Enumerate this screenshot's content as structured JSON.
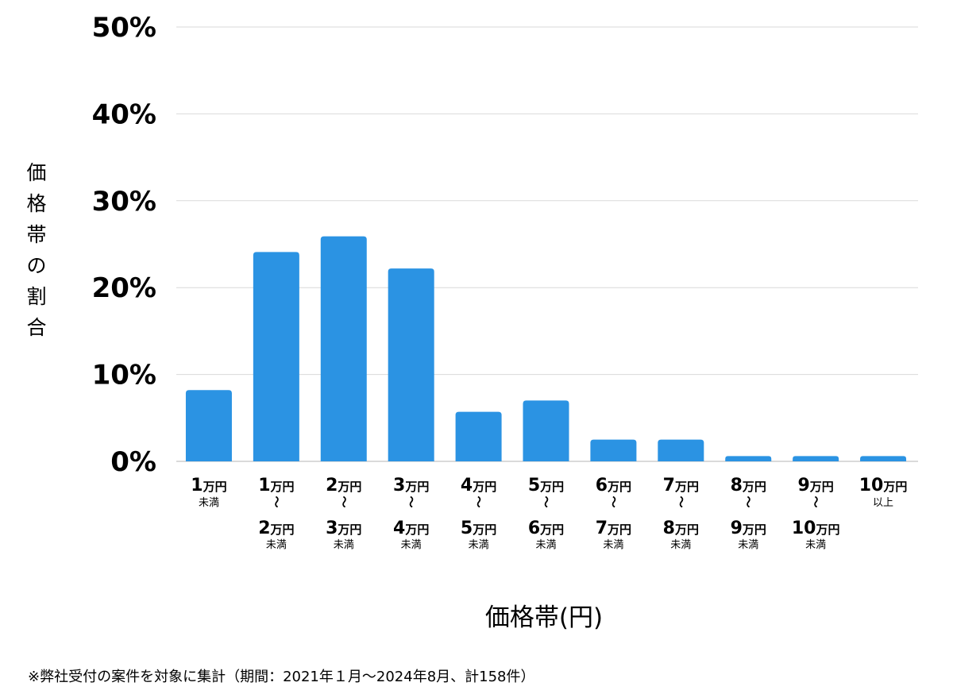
{
  "chart_data": {
    "type": "bar",
    "ylabel": "価格帯の割合",
    "xlabel": "価格帯(円)",
    "ylim": [
      0,
      50
    ],
    "yticks": [
      "0%",
      "10%",
      "20%",
      "30%",
      "40%",
      "50%"
    ],
    "ytick_values": [
      0,
      10,
      20,
      30,
      40,
      50
    ],
    "grid": true,
    "bar_color": "#2b93e3",
    "categories": [
      {
        "lines": [
          {
            "num": "1",
            "unit": "万円"
          },
          {
            "small": "未満"
          }
        ]
      },
      {
        "lines": [
          {
            "num": "1",
            "unit": "万円"
          },
          {
            "tilde": "〜"
          },
          {
            "num": "2",
            "unit": "万円"
          },
          {
            "small": "未満"
          }
        ]
      },
      {
        "lines": [
          {
            "num": "2",
            "unit": "万円"
          },
          {
            "tilde": "〜"
          },
          {
            "num": "3",
            "unit": "万円"
          },
          {
            "small": "未満"
          }
        ]
      },
      {
        "lines": [
          {
            "num": "3",
            "unit": "万円"
          },
          {
            "tilde": "〜"
          },
          {
            "num": "4",
            "unit": "万円"
          },
          {
            "small": "未満"
          }
        ]
      },
      {
        "lines": [
          {
            "num": "4",
            "unit": "万円"
          },
          {
            "tilde": "〜"
          },
          {
            "num": "5",
            "unit": "万円"
          },
          {
            "small": "未満"
          }
        ]
      },
      {
        "lines": [
          {
            "num": "5",
            "unit": "万円"
          },
          {
            "tilde": "〜"
          },
          {
            "num": "6",
            "unit": "万円"
          },
          {
            "small": "未満"
          }
        ]
      },
      {
        "lines": [
          {
            "num": "6",
            "unit": "万円"
          },
          {
            "tilde": "〜"
          },
          {
            "num": "7",
            "unit": "万円"
          },
          {
            "small": "未満"
          }
        ]
      },
      {
        "lines": [
          {
            "num": "7",
            "unit": "万円"
          },
          {
            "tilde": "〜"
          },
          {
            "num": "8",
            "unit": "万円"
          },
          {
            "small": "未満"
          }
        ]
      },
      {
        "lines": [
          {
            "num": "8",
            "unit": "万円"
          },
          {
            "tilde": "〜"
          },
          {
            "num": "9",
            "unit": "万円"
          },
          {
            "small": "未満"
          }
        ]
      },
      {
        "lines": [
          {
            "num": "9",
            "unit": "万円"
          },
          {
            "tilde": "〜"
          },
          {
            "num": "10",
            "unit": "万円"
          },
          {
            "small": "未満"
          }
        ]
      },
      {
        "lines": [
          {
            "num": "10",
            "unit": "万円"
          },
          {
            "small": "以上"
          }
        ]
      }
    ],
    "values": [
      8.2,
      24.1,
      25.9,
      22.2,
      5.7,
      7.0,
      2.5,
      2.5,
      0.6,
      0.6,
      0.6
    ]
  },
  "footnote": "※弊社受付の案件を対象に集計（期間：2021年１月〜2024年8月、計158件）"
}
